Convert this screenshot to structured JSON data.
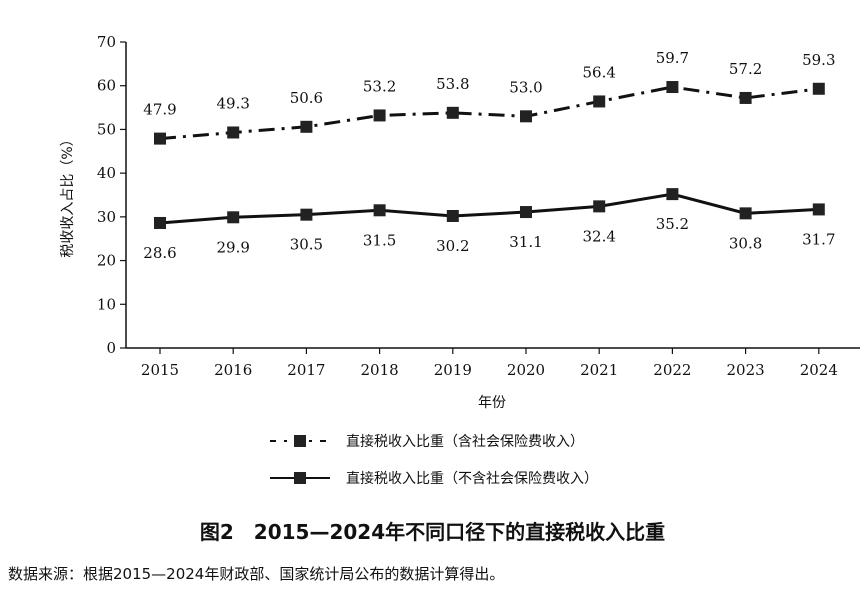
{
  "chart_data": {
    "type": "line",
    "title": "图2　2015—2024年不同口径下的直接税收入比重",
    "xlabel": "年份",
    "ylabel": "税收收入占比（%）",
    "ylim": [
      0,
      70
    ],
    "yticks": [
      0,
      10,
      20,
      30,
      40,
      50,
      60,
      70
    ],
    "categories": [
      "2015",
      "2016",
      "2017",
      "2018",
      "2019",
      "2020",
      "2021",
      "2022",
      "2023",
      "2024"
    ],
    "series": [
      {
        "name": "直接税收入比重（含社会保险费收入）",
        "values": [
          47.9,
          49.3,
          50.6,
          53.2,
          53.8,
          53.0,
          56.4,
          59.7,
          57.2,
          59.3
        ],
        "line_style": "dash-dot",
        "label_position": "above",
        "color": "#111111"
      },
      {
        "name": "直接税收入比重（不含社会保险费收入）",
        "values": [
          28.6,
          29.9,
          30.5,
          31.5,
          30.2,
          31.1,
          32.4,
          35.2,
          30.8,
          31.7
        ],
        "line_style": "solid",
        "label_position": "below",
        "color": "#111111"
      }
    ],
    "legend_position": "bottom-center",
    "grid": false,
    "source_note": "数据来源：根据2015—2024年财政部、国家统计局公布的数据计算得出。"
  }
}
